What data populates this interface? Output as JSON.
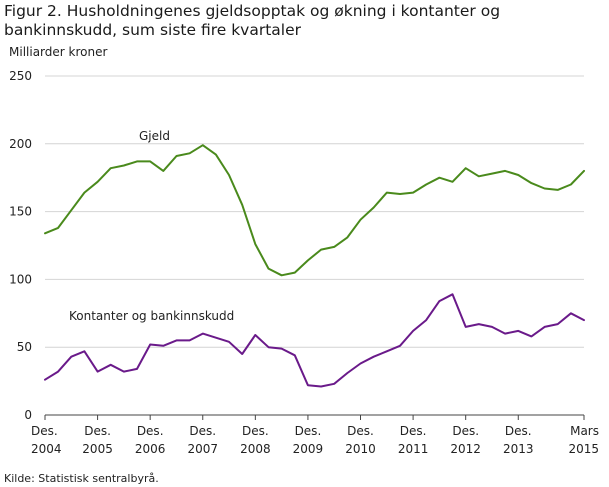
{
  "chart_data": {
    "type": "line",
    "title": "Figur 2. Husholdningenes gjeldsopptak og økning i kontanter og bankinnskudd, sum siste fire kvartaler",
    "ylabel": "Milliarder  kroner",
    "xlabel": "",
    "ylim": [
      0,
      250
    ],
    "yticks": [
      0,
      50,
      100,
      150,
      200,
      250
    ],
    "x_tick_labels": [
      {
        "top": "Des.",
        "bottom": "2004",
        "index": 0
      },
      {
        "top": "Des.",
        "bottom": "2005",
        "index": 4
      },
      {
        "top": "Des.",
        "bottom": "2006",
        "index": 8
      },
      {
        "top": "Des.",
        "bottom": "2007",
        "index": 12
      },
      {
        "top": "Des.",
        "bottom": "2008",
        "index": 16
      },
      {
        "top": "Des.",
        "bottom": "2009",
        "index": 20
      },
      {
        "top": "Des.",
        "bottom": "2010",
        "index": 24
      },
      {
        "top": "Des.",
        "bottom": "2011",
        "index": 28
      },
      {
        "top": "Des.",
        "bottom": "2012",
        "index": 32
      },
      {
        "top": "Des.",
        "bottom": "2013",
        "index": 36
      },
      {
        "top": "Mars",
        "bottom": "2015",
        "index": 41
      }
    ],
    "grid": "y",
    "x": [
      "2004K4",
      "2005K1",
      "2005K2",
      "2005K3",
      "2005K4",
      "2006K1",
      "2006K2",
      "2006K3",
      "2006K4",
      "2007K1",
      "2007K2",
      "2007K3",
      "2007K4",
      "2008K1",
      "2008K2",
      "2008K3",
      "2008K4",
      "2009K1",
      "2009K2",
      "2009K3",
      "2009K4",
      "2010K1",
      "2010K2",
      "2010K3",
      "2010K4",
      "2011K1",
      "2011K2",
      "2011K3",
      "2011K4",
      "2012K1",
      "2012K2",
      "2012K3",
      "2012K4",
      "2013K1",
      "2013K2",
      "2013K3",
      "2013K4",
      "2014K1",
      "2014K2",
      "2014K3",
      "2014K4",
      "2015K1"
    ],
    "series": [
      {
        "name": "Gjeld",
        "color": "#4a8a1c",
        "values": [
          134,
          138,
          151,
          164,
          172,
          182,
          184,
          187,
          187,
          180,
          191,
          193,
          199,
          192,
          177,
          155,
          126,
          108,
          103,
          105,
          114,
          122,
          124,
          131,
          144,
          153,
          164,
          163,
          164,
          170,
          175,
          172,
          182,
          176,
          178,
          180,
          177,
          171,
          167,
          166,
          170,
          180
        ]
      },
      {
        "name": "Kontanter  og bankinnskudd",
        "color": "#6a1a8a",
        "values": [
          26,
          32,
          43,
          47,
          32,
          37,
          32,
          34,
          52,
          51,
          55,
          55,
          60,
          57,
          54,
          45,
          59,
          50,
          49,
          44,
          22,
          21,
          23,
          31,
          38,
          43,
          47,
          51,
          62,
          70,
          84,
          89,
          65,
          67,
          65,
          60,
          62,
          58,
          65,
          67,
          75,
          70
        ]
      }
    ],
    "annotations": [
      {
        "text": "Gjeld",
        "series": 0
      },
      {
        "text": "Kontanter  og bankinnskudd",
        "series": 1
      }
    ]
  },
  "source": "Kilde: Statistisk sentralbyrå."
}
